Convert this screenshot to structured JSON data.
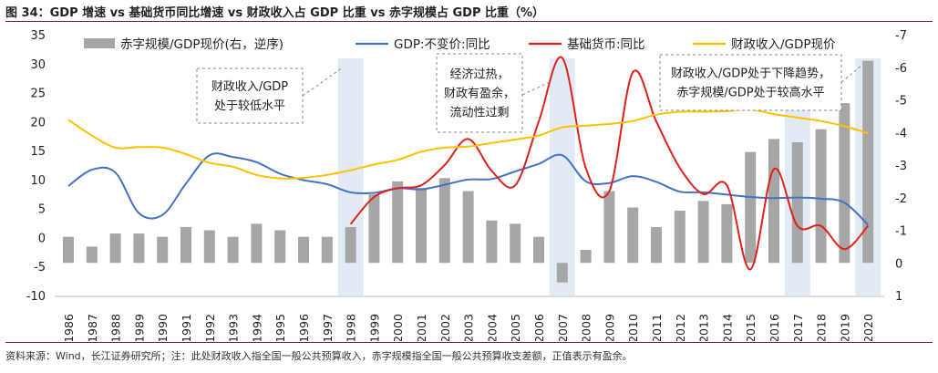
{
  "figure": {
    "title": "图 34：GDP 增速 vs 基础货币同比增速 vs 财政收入占 GDP 比重 vs 赤字规模占 GDP 比重（%）",
    "footnote": "资料来源：Wind，长江证券研究所；注：此处财政收入指全国一般公共预算收入，赤字规模指全国一般公共预算收支差额，正值表示有盈余。"
  },
  "chart_data": {
    "type": "bar+line",
    "categories": [
      "1986",
      "1987",
      "1988",
      "1989",
      "1990",
      "1991",
      "1992",
      "1993",
      "1994",
      "1995",
      "1996",
      "1997",
      "1998",
      "1999",
      "2000",
      "2001",
      "2002",
      "2003",
      "2004",
      "2005",
      "2006",
      "2007",
      "2008",
      "2009",
      "2010",
      "2011",
      "2012",
      "2013",
      "2014",
      "2015",
      "2016",
      "2017",
      "2018",
      "2019",
      "2020"
    ],
    "left_axis": {
      "ylim": [
        -10,
        35
      ],
      "ticks": [
        -10,
        -5,
        0,
        5,
        10,
        15,
        20,
        25,
        30,
        35
      ]
    },
    "right_axis": {
      "ylim": [
        1,
        -7
      ],
      "reversed": true,
      "ticks": [
        1,
        0,
        -1,
        -2,
        -3,
        -4,
        -5,
        -6,
        -7
      ]
    },
    "series": [
      {
        "name": "赤字规模/GDP现价(右，逆序)",
        "type": "bar",
        "axis": "right",
        "color": "#a6a6a6",
        "values": [
          -0.8,
          -0.5,
          -0.9,
          -0.9,
          -0.8,
          -1.1,
          -1.0,
          -0.8,
          -1.2,
          -1.0,
          -0.8,
          -0.8,
          -1.1,
          -2.1,
          -2.5,
          -2.3,
          -2.6,
          -2.2,
          -1.3,
          -1.2,
          -0.8,
          0.6,
          -0.4,
          -2.2,
          -1.7,
          -1.1,
          -1.6,
          -1.9,
          -1.8,
          -3.4,
          -3.8,
          -3.7,
          -4.1,
          -4.9,
          -6.2
        ]
      },
      {
        "name": "GDP:不变价:同比",
        "type": "line",
        "axis": "left",
        "color": "#4472c4",
        "values": [
          8.9,
          11.7,
          11.2,
          4.2,
          3.9,
          9.3,
          14.2,
          13.9,
          13.0,
          11.0,
          9.9,
          9.2,
          7.8,
          7.7,
          8.5,
          8.3,
          9.1,
          10.0,
          10.1,
          11.4,
          12.7,
          14.2,
          9.7,
          9.4,
          10.6,
          9.6,
          7.9,
          7.8,
          7.4,
          7.0,
          6.8,
          6.9,
          6.7,
          6.0,
          2.2
        ]
      },
      {
        "name": "基础货币:同比",
        "type": "line",
        "axis": "left",
        "color": "#e0201b",
        "values": [
          null,
          null,
          null,
          null,
          null,
          null,
          null,
          null,
          null,
          null,
          null,
          null,
          2.3,
          7.0,
          8.5,
          9.0,
          12.5,
          17.0,
          11.5,
          9.0,
          20.0,
          31.0,
          12.0,
          8.0,
          28.5,
          20.0,
          12.0,
          7.5,
          9.0,
          -5.5,
          11.8,
          2.0,
          2.0,
          -2.0,
          2.0
        ]
      },
      {
        "name": "财政收入/GDP现价",
        "type": "line",
        "axis": "left",
        "color": "#ffc000",
        "values": [
          20.3,
          17.6,
          15.5,
          15.6,
          15.5,
          14.4,
          12.9,
          12.2,
          10.8,
          10.2,
          10.3,
          10.8,
          11.6,
          12.6,
          13.4,
          14.8,
          15.5,
          15.7,
          16.3,
          16.9,
          17.6,
          19.0,
          19.3,
          19.6,
          20.1,
          21.2,
          21.7,
          21.7,
          21.8,
          22.1,
          21.3,
          20.7,
          20.1,
          19.2,
          18.0
        ]
      }
    ],
    "highlight_years": [
      "1998",
      "2007",
      "2017",
      "2020"
    ],
    "annotations": [
      {
        "lines": [
          "财政收入/GDP",
          "处于较低水平"
        ]
      },
      {
        "lines": [
          "经济过热，",
          "财政有盈余，",
          "流动性过剩"
        ]
      },
      {
        "lines": [
          "财政收入/GDP处于下降趋势，",
          "赤字规模/GDP处于较高水平"
        ]
      }
    ]
  }
}
